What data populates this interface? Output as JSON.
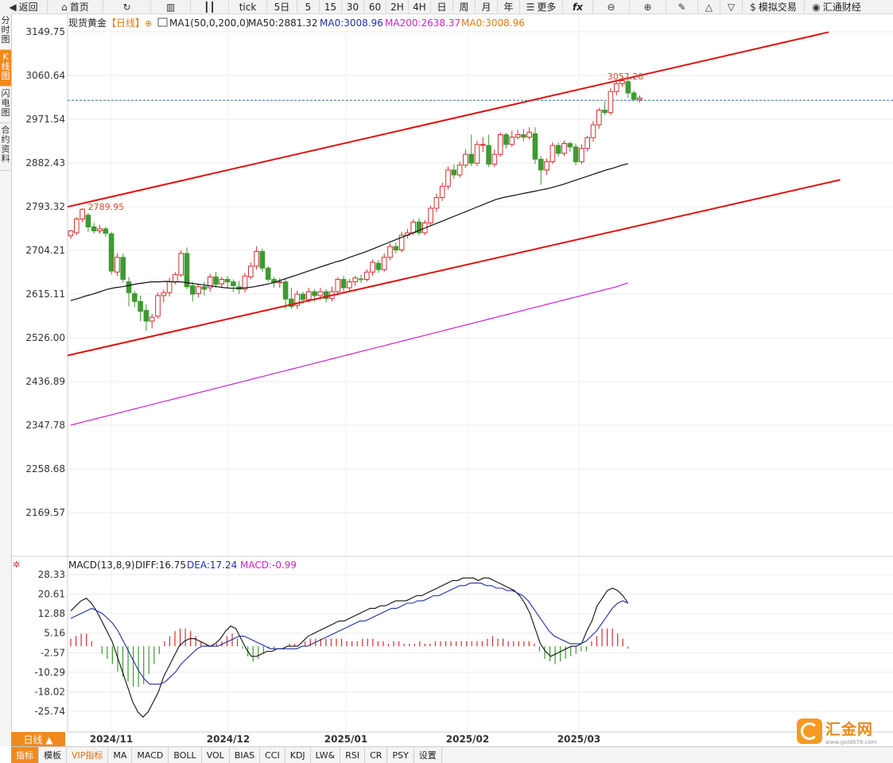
{
  "toolbar": {
    "back": "返回",
    "home": "首页",
    "tick": "tick",
    "d5": "5日",
    "m5": "5",
    "m15": "15",
    "m30": "30",
    "m60": "60",
    "h2": "2H",
    "h4": "4H",
    "day": "日",
    "week": "周",
    "month": "月",
    "year": "年",
    "more": "更多",
    "fx": "fx",
    "sim_trade": "模拟交易",
    "brand": "汇通财经"
  },
  "sidetabs": [
    "分时图",
    "K线图",
    "闪电图",
    "合约资料"
  ],
  "legend": {
    "symbol": "现货黄金",
    "period": "【日线】",
    "ma1": "MA1(50,0,200,0)",
    "ma50": "MA50:2881.32",
    "ma0": "MA0:3008.96",
    "ma200": "MA200:2638.37",
    "ma0b": "MA0:3008.96"
  },
  "macd_legend": {
    "name": "MACD(13,8,9)",
    "diff": "DIFF:16.75",
    "dea": "DEA:17.24",
    "macd": "MACD:-0.99"
  },
  "period_button": "日线 ▲",
  "bottom_tabs": [
    "指标",
    "模板",
    "VIP指标",
    "MA",
    "MACD",
    "BOLL",
    "VOL",
    "BIAS",
    "CCI",
    "KDJ",
    "LW&",
    "RSI",
    "CR",
    "PSY",
    "设置"
  ],
  "logo": {
    "name": "汇金网",
    "url": "www.gold678.com"
  },
  "colors": {
    "up": "#d0302f",
    "down": "#3f9a32",
    "ma50": "#111111",
    "ma200": "#cc22cc",
    "diff": "#111111",
    "dea": "#1f2fa8",
    "channel": "#e01010",
    "accent": "#f08a1f"
  },
  "chart_data": [
    {
      "type": "candlestick",
      "title": "现货黄金 日线",
      "y_ticks": [
        "3149.75",
        "3060.64",
        "2971.54",
        "2882.43",
        "2793.32",
        "2704.21",
        "2615.11",
        "2526.00",
        "2436.89",
        "2347.78",
        "2258.68",
        "2169.57"
      ],
      "ylim": [
        2169.57,
        3149.75
      ],
      "x_ticks": [
        "2024/11",
        "2024/12",
        "2025/01",
        "2025/02",
        "2025/03"
      ],
      "annotations": {
        "high": "3057.28",
        "low": "2789.95"
      },
      "current_price": 3010,
      "candles": [
        [
          2734,
          2744,
          2728,
          2746
        ],
        [
          2740,
          2768,
          2735,
          2772
        ],
        [
          2768,
          2788,
          2762,
          2790
        ],
        [
          2776,
          2752,
          2742,
          2780
        ],
        [
          2752,
          2744,
          2738,
          2760
        ],
        [
          2744,
          2748,
          2738,
          2756
        ],
        [
          2748,
          2739,
          2732,
          2752
        ],
        [
          2738,
          2662,
          2655,
          2742
        ],
        [
          2660,
          2690,
          2652,
          2698
        ],
        [
          2690,
          2645,
          2638,
          2698
        ],
        [
          2640,
          2618,
          2590,
          2650
        ],
        [
          2616,
          2600,
          2588,
          2622
        ],
        [
          2600,
          2580,
          2560,
          2612
        ],
        [
          2582,
          2560,
          2540,
          2594
        ],
        [
          2560,
          2568,
          2545,
          2575
        ],
        [
          2570,
          2612,
          2565,
          2618
        ],
        [
          2612,
          2618,
          2598,
          2624
        ],
        [
          2618,
          2640,
          2610,
          2648
        ],
        [
          2640,
          2655,
          2635,
          2660
        ],
        [
          2654,
          2698,
          2650,
          2704
        ],
        [
          2698,
          2630,
          2625,
          2710
        ],
        [
          2632,
          2615,
          2600,
          2640
        ],
        [
          2616,
          2630,
          2608,
          2636
        ],
        [
          2630,
          2625,
          2612,
          2640
        ],
        [
          2628,
          2650,
          2620,
          2656
        ],
        [
          2650,
          2635,
          2628,
          2660
        ],
        [
          2636,
          2645,
          2628,
          2650
        ],
        [
          2645,
          2640,
          2628,
          2652
        ],
        [
          2640,
          2632,
          2620,
          2645
        ],
        [
          2630,
          2625,
          2615,
          2642
        ],
        [
          2625,
          2652,
          2618,
          2658
        ],
        [
          2650,
          2672,
          2645,
          2680
        ],
        [
          2672,
          2702,
          2665,
          2712
        ],
        [
          2702,
          2668,
          2660,
          2708
        ],
        [
          2668,
          2645,
          2640,
          2672
        ],
        [
          2645,
          2638,
          2628,
          2650
        ],
        [
          2638,
          2640,
          2628,
          2648
        ],
        [
          2640,
          2605,
          2585,
          2645
        ],
        [
          2605,
          2590,
          2585,
          2628
        ],
        [
          2592,
          2615,
          2585,
          2622
        ],
        [
          2615,
          2604,
          2596,
          2620
        ],
        [
          2604,
          2620,
          2598,
          2628
        ],
        [
          2620,
          2612,
          2600,
          2625
        ],
        [
          2612,
          2620,
          2604,
          2628
        ],
        [
          2620,
          2606,
          2598,
          2625
        ],
        [
          2606,
          2620,
          2600,
          2630
        ],
        [
          2620,
          2645,
          2612,
          2650
        ],
        [
          2645,
          2628,
          2620,
          2652
        ],
        [
          2628,
          2640,
          2622,
          2646
        ],
        [
          2640,
          2648,
          2632,
          2652
        ],
        [
          2646,
          2645,
          2638,
          2655
        ],
        [
          2645,
          2660,
          2640,
          2666
        ],
        [
          2660,
          2680,
          2652,
          2686
        ],
        [
          2678,
          2665,
          2658,
          2685
        ],
        [
          2665,
          2690,
          2660,
          2698
        ],
        [
          2690,
          2712,
          2684,
          2718
        ],
        [
          2712,
          2705,
          2698,
          2720
        ],
        [
          2705,
          2735,
          2700,
          2742
        ],
        [
          2735,
          2740,
          2728,
          2748
        ],
        [
          2740,
          2762,
          2735,
          2768
        ],
        [
          2762,
          2740,
          2735,
          2770
        ],
        [
          2740,
          2760,
          2735,
          2766
        ],
        [
          2760,
          2790,
          2755,
          2795
        ],
        [
          2790,
          2812,
          2782,
          2820
        ],
        [
          2812,
          2835,
          2805,
          2842
        ],
        [
          2835,
          2868,
          2828,
          2875
        ],
        [
          2868,
          2858,
          2850,
          2880
        ],
        [
          2858,
          2878,
          2852,
          2885
        ],
        [
          2878,
          2900,
          2872,
          2910
        ],
        [
          2900,
          2882,
          2876,
          2940
        ],
        [
          2882,
          2920,
          2876,
          2928
        ],
        [
          2920,
          2920,
          2905,
          2935
        ],
        [
          2918,
          2880,
          2874,
          2940
        ],
        [
          2880,
          2900,
          2874,
          2910
        ],
        [
          2900,
          2940,
          2895,
          2945
        ],
        [
          2940,
          2920,
          2912,
          2944
        ],
        [
          2920,
          2935,
          2915,
          2948
        ],
        [
          2935,
          2940,
          2930,
          2950
        ],
        [
          2940,
          2935,
          2926,
          2952
        ],
        [
          2935,
          2945,
          2930,
          2955
        ],
        [
          2942,
          2890,
          2880,
          2955
        ],
        [
          2890,
          2868,
          2838,
          2896
        ],
        [
          2868,
          2885,
          2858,
          2892
        ],
        [
          2885,
          2918,
          2880,
          2925
        ],
        [
          2918,
          2902,
          2895,
          2924
        ],
        [
          2902,
          2922,
          2896,
          2928
        ],
        [
          2922,
          2915,
          2905,
          2926
        ],
        [
          2915,
          2885,
          2878,
          2922
        ],
        [
          2885,
          2912,
          2880,
          2920
        ],
        [
          2912,
          2934,
          2905,
          2938
        ],
        [
          2934,
          2960,
          2926,
          2968
        ],
        [
          2960,
          2990,
          2952,
          2995
        ],
        [
          2990,
          2985,
          2980,
          3008
        ],
        [
          2985,
          3028,
          2980,
          3035
        ],
        [
          3028,
          3044,
          3020,
          3052
        ],
        [
          3044,
          3050,
          3038,
          3058
        ],
        [
          3048,
          3025,
          3015,
          3054
        ],
        [
          3025,
          3012,
          3008,
          3030
        ],
        [
          3012,
          3015,
          3005,
          3020
        ]
      ],
      "ma50": [
        2602,
        2606,
        2611,
        2615,
        2620,
        2625,
        2628,
        2630,
        2633,
        2636,
        2638,
        2640,
        2640,
        2641,
        2640,
        2640,
        2638,
        2636,
        2634,
        2632,
        2630,
        2628,
        2627,
        2627,
        2628,
        2630,
        2633,
        2636,
        2640,
        2645,
        2650,
        2655,
        2660,
        2665,
        2670,
        2675,
        2680,
        2684,
        2690,
        2695,
        2700,
        2706,
        2712,
        2718,
        2724,
        2730,
        2736,
        2742,
        2748,
        2754,
        2760,
        2766,
        2772,
        2778,
        2784,
        2790,
        2796,
        2802,
        2808,
        2812,
        2815,
        2818,
        2821,
        2824,
        2827,
        2830,
        2834,
        2838,
        2843,
        2848,
        2853,
        2858,
        2863,
        2868,
        2872,
        2877,
        2881
      ],
      "ma200": [
        2348,
        2351,
        2354,
        2357,
        2360,
        2363,
        2366,
        2369,
        2372,
        2375,
        2378,
        2381,
        2384,
        2387,
        2390,
        2393,
        2396,
        2399,
        2402,
        2405,
        2408,
        2411,
        2414,
        2417,
        2420,
        2423,
        2426,
        2429,
        2432,
        2435,
        2438,
        2441,
        2444,
        2447,
        2450,
        2453,
        2456,
        2459,
        2462,
        2465,
        2468,
        2471,
        2474,
        2477,
        2480,
        2483,
        2486,
        2489,
        2492,
        2495,
        2498,
        2501,
        2504,
        2507,
        2510,
        2513,
        2516,
        2519,
        2522,
        2525,
        2528,
        2531,
        2534,
        2537,
        2540,
        2543,
        2546,
        2549,
        2552,
        2555,
        2558,
        2561,
        2564,
        2567,
        2570,
        2573,
        2576,
        2579,
        2582,
        2585,
        2588,
        2591,
        2594,
        2597,
        2600,
        2603,
        2606,
        2609,
        2612,
        2615,
        2618,
        2621,
        2624,
        2627,
        2630,
        2634,
        2638
      ],
      "channel_upper": {
        "x": [
          0,
          130
        ],
        "y": [
          2793,
          3149
        ]
      },
      "channel_lower": {
        "x": [
          0,
          132
        ],
        "y": [
          2490,
          2848
        ]
      }
    },
    {
      "type": "macd",
      "title": "MACD(13,8,9)",
      "y_ticks": [
        "28.33",
        "20.61",
        "12.88",
        "5.16",
        "-2.57",
        "-10.29",
        "-18.02",
        "-25.74"
      ],
      "ylim": [
        -30,
        30
      ],
      "diff": [
        14,
        16,
        18,
        19,
        17,
        14,
        10,
        6,
        2,
        -4,
        -10,
        -16,
        -22,
        -26,
        -28,
        -26,
        -22,
        -18,
        -12,
        -8,
        -4,
        0,
        2,
        3,
        3,
        2,
        1,
        0,
        1,
        3,
        6,
        8,
        7,
        3,
        -1,
        -4,
        -4,
        -3,
        -2,
        -2,
        -1,
        -1,
        0,
        0,
        0,
        2,
        4,
        5,
        6,
        7,
        8,
        9,
        10,
        10,
        11,
        12,
        13,
        14,
        15,
        15,
        16,
        16,
        17,
        18,
        18,
        18,
        19,
        20,
        20,
        21,
        22,
        23,
        24,
        25,
        26,
        26,
        27,
        27,
        27,
        26,
        27,
        27,
        26,
        25,
        24,
        23,
        22,
        20,
        17,
        13,
        7,
        1,
        -2,
        -4,
        -3,
        -2,
        -1,
        0,
        0,
        1,
        6,
        10,
        16,
        19,
        22,
        23,
        22,
        20,
        17
      ],
      "dea": [
        11,
        12,
        13,
        14,
        15,
        14,
        13,
        11,
        9,
        6,
        2,
        -2,
        -6,
        -10,
        -13,
        -15,
        -15,
        -15,
        -14,
        -12,
        -10,
        -7,
        -5,
        -3,
        -1,
        0,
        0,
        0,
        0,
        1,
        2,
        3,
        4,
        4,
        3,
        2,
        1,
        0,
        -1,
        -1,
        -1,
        -1,
        -1,
        -1,
        0,
        0,
        1,
        2,
        3,
        4,
        5,
        6,
        7,
        8,
        9,
        10,
        10,
        11,
        12,
        13,
        14,
        15,
        15,
        16,
        17,
        17,
        18,
        18,
        19,
        20,
        20,
        21,
        22,
        23,
        24,
        24,
        25,
        25,
        25,
        24,
        24,
        23,
        23,
        22,
        22,
        21,
        20,
        18,
        15,
        12,
        9,
        6,
        4,
        3,
        2,
        1,
        1,
        1,
        2,
        4,
        6,
        9,
        12,
        15,
        17,
        18,
        17
      ],
      "macd": [
        3,
        4,
        5,
        5,
        2,
        0,
        -3,
        -5,
        -7,
        -10,
        -12,
        -14,
        -16,
        -16,
        -15,
        -11,
        -7,
        -3,
        2,
        4,
        6,
        7,
        7,
        6,
        4,
        2,
        1,
        0,
        1,
        2,
        4,
        5,
        3,
        -1,
        -4,
        -6,
        -5,
        -3,
        -1,
        -1,
        0,
        0,
        1,
        1,
        0,
        2,
        3,
        3,
        3,
        3,
        3,
        3,
        3,
        2,
        2,
        2,
        3,
        3,
        3,
        2,
        2,
        1,
        2,
        2,
        1,
        1,
        1,
        2,
        1,
        1,
        2,
        2,
        2,
        2,
        2,
        2,
        2,
        2,
        2,
        2,
        3,
        4,
        3,
        3,
        2,
        2,
        2,
        2,
        2,
        1,
        -2,
        -5,
        -6,
        -7,
        -6,
        -5,
        -4,
        -3,
        -2,
        -2,
        2,
        4,
        7,
        7,
        7,
        5,
        3,
        -1
      ]
    }
  ]
}
